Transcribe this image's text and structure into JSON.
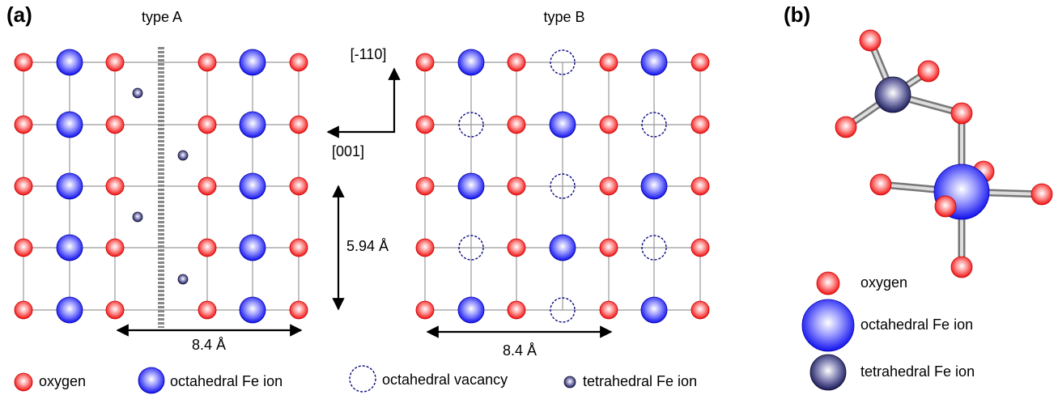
{
  "panel_a": {
    "label": "(a)",
    "type_a": {
      "title": "type A",
      "width_label": "8.4 Å"
    },
    "type_b": {
      "title": "type B",
      "width_label": "8.4 Å"
    },
    "axes": {
      "up": "[-110]",
      "left": "[001]"
    },
    "height_label": "5.94 Å",
    "legend": [
      "oxygen",
      "octahedral Fe ion",
      "octahedral vacancy",
      "tetrahedral Fe ion"
    ]
  },
  "panel_b": {
    "label": "(b)",
    "legend": [
      "oxygen",
      "octahedral Fe ion",
      "tetrahedral Fe ion"
    ]
  }
}
